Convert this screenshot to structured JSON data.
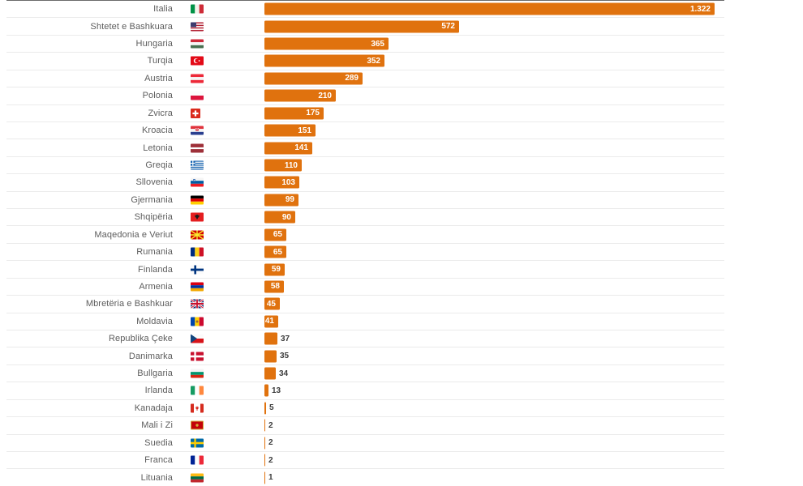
{
  "style": {
    "bar_color": "#e0720e",
    "label_color": "#5d5d5d",
    "value_inside_color": "#ffffff",
    "value_outside_color": "#3c3c3c",
    "separator_color": "#ebebeb",
    "top_border_color": "#6b6b6b",
    "background_color": "#ffffff"
  },
  "chart_data": {
    "type": "bar",
    "orientation": "horizontal",
    "title": "",
    "xlabel": "",
    "ylabel": "",
    "xlim": [
      0,
      1322
    ],
    "grid": "row-separators-only",
    "legend": "none",
    "categories": [
      "Italia",
      "Shtetet e Bashkuara",
      "Hungaria",
      "Turqia",
      "Austria",
      "Polonia",
      "Zvicra",
      "Kroacia",
      "Letonia",
      "Greqia",
      "Sllovenia",
      "Gjermania",
      "Shqipëria",
      "Maqedonia e Veriut",
      "Rumania",
      "Finlanda",
      "Armenia",
      "Mbretëria e Bashkuar",
      "Moldavia",
      "Republika Çeke",
      "Danimarka",
      "Bullgaria",
      "Irlanda",
      "Kanadaja",
      "Mali i Zi",
      "Suedia",
      "Franca",
      "Lituania"
    ],
    "values": [
      1322,
      572,
      365,
      352,
      289,
      210,
      175,
      151,
      141,
      110,
      103,
      99,
      90,
      65,
      65,
      59,
      58,
      45,
      41,
      37,
      35,
      34,
      13,
      5,
      2,
      2,
      2,
      1
    ],
    "display_values": [
      "1.322",
      "572",
      "365",
      "352",
      "289",
      "210",
      "175",
      "151",
      "141",
      "110",
      "103",
      "99",
      "90",
      "65",
      "65",
      "59",
      "58",
      "45",
      "41",
      "37",
      "35",
      "34",
      "13",
      "5",
      "2",
      "2",
      "2",
      "1"
    ],
    "flag_codes": [
      "it",
      "us",
      "hu",
      "tr",
      "at",
      "pl",
      "ch",
      "hr",
      "lv",
      "gr",
      "si",
      "de",
      "al",
      "mk",
      "ro",
      "fi",
      "am",
      "gb",
      "md",
      "cz",
      "dk",
      "bg",
      "ie",
      "ca",
      "me",
      "se",
      "fr",
      "lt"
    ]
  }
}
